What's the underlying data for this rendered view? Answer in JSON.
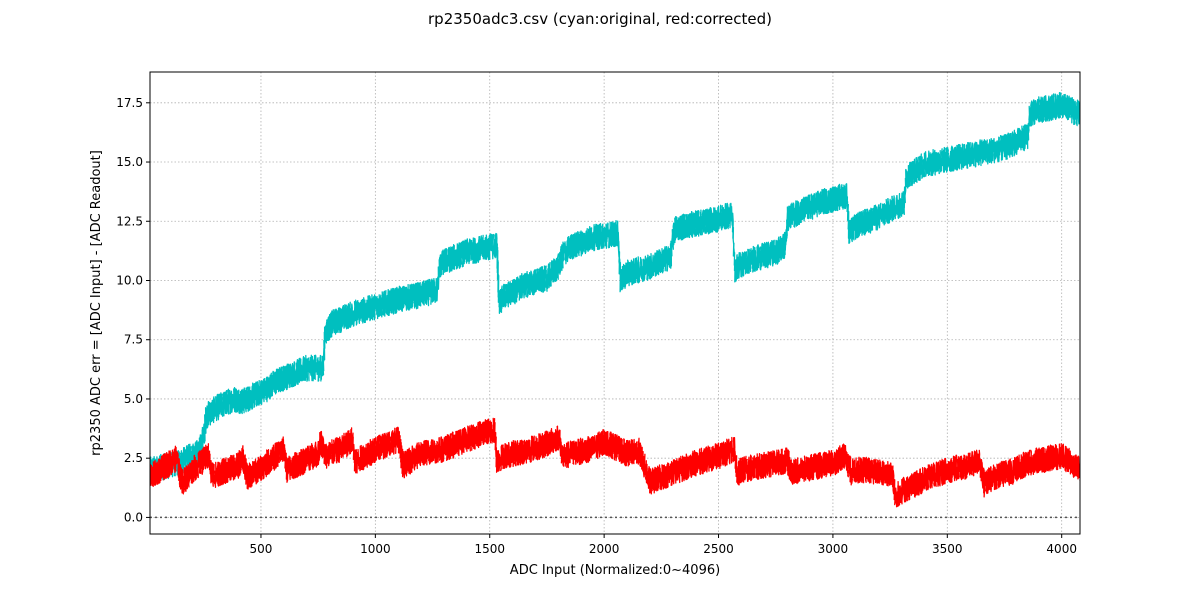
{
  "chart_data": {
    "type": "line",
    "title": "rp2350adc3.csv (cyan:original, red:corrected)",
    "xlabel": "ADC Input (Normalized:0~4096)",
    "ylabel": "rp2350 ADC err = [ADC Input] - [ADC Readout]",
    "xlim": [
      15,
      4080
    ],
    "ylim": [
      -0.7,
      18.8
    ],
    "xticks": [
      500,
      1000,
      1500,
      2000,
      2500,
      3000,
      3500,
      4000
    ],
    "xtick_labels": [
      "500",
      "1000",
      "1500",
      "2000",
      "2500",
      "3000",
      "3500",
      "4000"
    ],
    "yticks": [
      0,
      2.5,
      5,
      7.5,
      10,
      12.5,
      15,
      17.5
    ],
    "ytick_labels": [
      "0.0",
      "2.5",
      "5.0",
      "7.5",
      "10.0",
      "12.5",
      "15.0",
      "17.5"
    ],
    "grid": true,
    "reference_line": {
      "y": 0,
      "style": "dotted",
      "color": "#555555"
    },
    "series": [
      {
        "color": "#00bfbf",
        "noise": 0.55,
        "x": [
          15,
          100,
          160,
          230,
          250,
          260,
          300,
          380,
          420,
          480,
          520,
          560,
          600,
          700,
          770,
          780,
          810,
          900,
          1000,
          1100,
          1200,
          1270,
          1280,
          1300,
          1400,
          1530,
          1540,
          1560,
          1650,
          1750,
          1800,
          1820,
          1850,
          1950,
          2060,
          2070,
          2100,
          2200,
          2290,
          2300,
          2310,
          2400,
          2500,
          2560,
          2570,
          2580,
          2650,
          2750,
          2790,
          2800,
          2850,
          2950,
          3060,
          3070,
          3100,
          3200,
          3310,
          3320,
          3400,
          3500,
          3650,
          3750,
          3850,
          3860,
          3900,
          4000,
          4080
        ],
        "y": [
          2.0,
          2.2,
          2.4,
          2.8,
          3.5,
          4.3,
          4.6,
          5.0,
          4.9,
          5.2,
          5.4,
          5.7,
          5.9,
          6.3,
          6.3,
          7.8,
          8.2,
          8.6,
          8.9,
          9.2,
          9.4,
          9.6,
          10.6,
          10.8,
          11.2,
          11.5,
          9.1,
          9.3,
          9.8,
          10.1,
          10.6,
          11.1,
          11.4,
          11.8,
          12.0,
          10.0,
          10.3,
          10.6,
          11.0,
          11.8,
          12.2,
          12.4,
          12.6,
          12.8,
          10.3,
          10.6,
          10.9,
          11.2,
          11.5,
          12.6,
          12.9,
          13.3,
          13.6,
          12.0,
          12.3,
          12.7,
          13.3,
          14.4,
          14.9,
          15.1,
          15.4,
          15.6,
          16.1,
          17.0,
          17.2,
          17.4,
          17.0
        ]
      },
      {
        "color": "#ff0000",
        "noise": 0.55,
        "x": [
          15,
          130,
          150,
          160,
          200,
          270,
          280,
          300,
          400,
          420,
          440,
          500,
          600,
          610,
          650,
          750,
          760,
          780,
          850,
          900,
          910,
          950,
          1050,
          1100,
          1120,
          1200,
          1250,
          1300,
          1350,
          1450,
          1520,
          1530,
          1560,
          1650,
          1750,
          1800,
          1820,
          1850,
          1950,
          2000,
          2100,
          2150,
          2200,
          2300,
          2400,
          2500,
          2570,
          2580,
          2600,
          2700,
          2800,
          2820,
          2900,
          3000,
          3050,
          3080,
          3100,
          3150,
          3200,
          3260,
          3270,
          3300,
          3400,
          3500,
          3600,
          3640,
          3660,
          3700,
          3800,
          3850,
          3900,
          4000,
          4080
        ],
        "y": [
          1.7,
          2.5,
          1.6,
          1.5,
          2.0,
          2.6,
          1.9,
          1.8,
          2.2,
          2.5,
          1.7,
          2.1,
          2.9,
          2.0,
          2.2,
          2.7,
          3.3,
          2.6,
          2.9,
          3.3,
          2.3,
          2.6,
          3.1,
          3.3,
          2.2,
          2.7,
          2.8,
          2.9,
          3.1,
          3.5,
          3.7,
          2.4,
          2.6,
          2.8,
          3.1,
          3.4,
          2.5,
          2.7,
          2.9,
          3.2,
          2.7,
          2.8,
          1.5,
          1.9,
          2.3,
          2.6,
          2.9,
          1.8,
          2.0,
          2.2,
          2.4,
          1.9,
          2.1,
          2.3,
          2.6,
          1.9,
          2.0,
          2.0,
          1.9,
          1.8,
          0.9,
          1.1,
          1.6,
          2.0,
          2.2,
          2.4,
          1.4,
          1.7,
          2.0,
          2.3,
          2.4,
          2.6,
          2.0
        ]
      }
    ]
  }
}
